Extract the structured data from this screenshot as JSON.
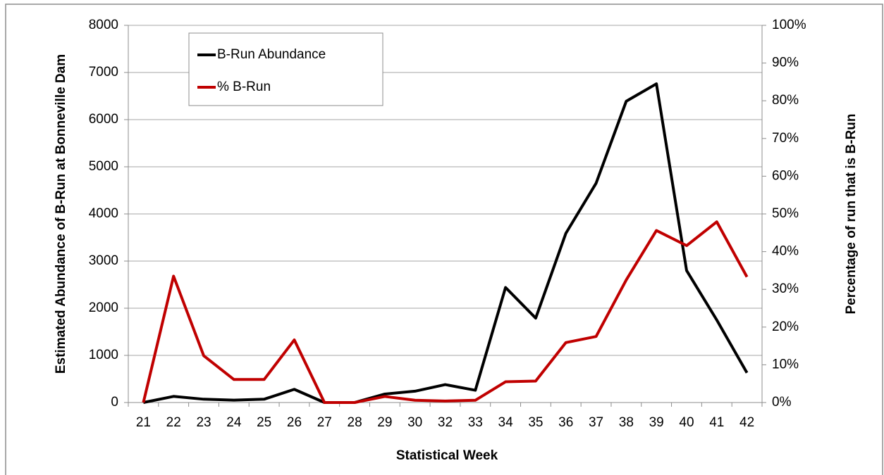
{
  "chart_data": {
    "type": "line",
    "x_label": "Statistical Week",
    "y_label": "Estimated Abundance of B-Run at Bonneville Dam",
    "y2_label": "Percentage of run that is B-Run",
    "categories": [
      "21",
      "22",
      "23",
      "24",
      "25",
      "26",
      "27",
      "28",
      "29",
      "30",
      "32",
      "33",
      "34",
      "35",
      "36",
      "37",
      "38",
      "39",
      "40",
      "41",
      "42"
    ],
    "series": [
      {
        "name": "B-Run Abundance",
        "color": "#000000",
        "values": [
          0,
          130,
          70,
          50,
          70,
          280,
          0,
          0,
          180,
          240,
          380,
          260,
          2440,
          1790,
          3590,
          4650,
          6390,
          6760,
          2800,
          1750,
          630
        ]
      },
      {
        "name": "% B-Run",
        "color": "#c00000",
        "axis": "y2",
        "values": [
          0,
          33.5,
          12.4,
          6.1,
          6.1,
          16.6,
          0,
          0,
          1.6,
          0.6,
          0.4,
          0.6,
          5.5,
          5.7,
          15.9,
          17.5,
          32.5,
          45.6,
          41.6,
          47.9,
          33.3
        ]
      }
    ],
    "ylim": [
      0,
      8000
    ],
    "yticks": [
      0,
      1000,
      2000,
      3000,
      4000,
      5000,
      6000,
      7000,
      8000
    ],
    "y2lim": [
      0,
      100
    ],
    "y2ticks": [
      {
        "value": 0,
        "label": "0%"
      },
      {
        "value": 10,
        "label": "10%"
      },
      {
        "value": 20,
        "label": "20%"
      },
      {
        "value": 30,
        "label": "30%"
      },
      {
        "value": 40,
        "label": "40%"
      },
      {
        "value": 50,
        "label": "50%"
      },
      {
        "value": 60,
        "label": "60%"
      },
      {
        "value": 70,
        "label": "70%"
      },
      {
        "value": 80,
        "label": "80%"
      },
      {
        "value": 90,
        "label": "90%"
      },
      {
        "value": 100,
        "label": "100%"
      }
    ],
    "grid": true,
    "legend": "top-left"
  }
}
